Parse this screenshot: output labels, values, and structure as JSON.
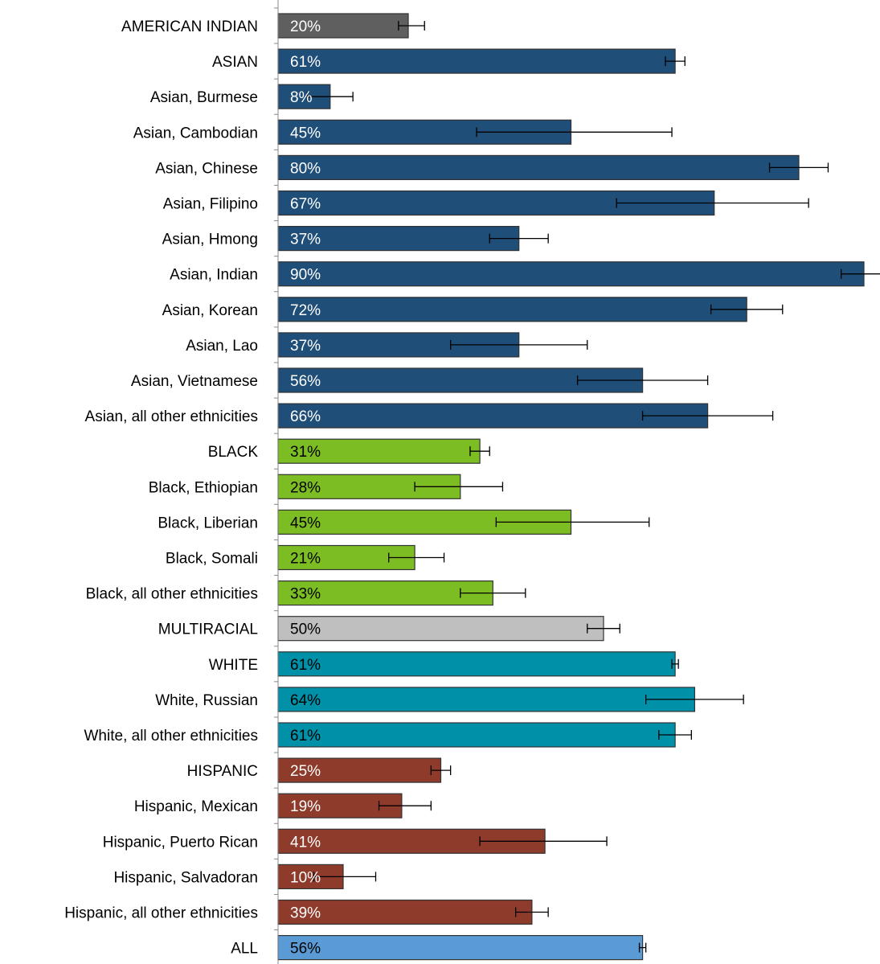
{
  "chart_data": {
    "type": "bar",
    "orientation": "horizontal",
    "title": "",
    "xlabel": "",
    "ylabel": "",
    "xlim": [
      0,
      100
    ],
    "grid": false,
    "legend": "none",
    "colors": {
      "american_indian": "#5f5f5f",
      "asian": "#1f4e79",
      "black": "#7bbd22",
      "multiracial": "#bfbfbf",
      "white": "#0090a8",
      "hispanic": "#8e3b2b",
      "all": "#5b9bd5"
    },
    "categories": [
      "AMERICAN INDIAN",
      "ASIAN",
      "Asian, Burmese",
      "Asian, Cambodian",
      "Asian, Chinese",
      "Asian, Filipino",
      "Asian, Hmong",
      "Asian, Indian",
      "Asian, Korean",
      "Asian, Lao",
      "Asian, Vietnamese",
      "Asian, all other ethnicities",
      "BLACK",
      "Black, Ethiopian",
      "Black, Liberian",
      "Black, Somali",
      "Black, all other ethnicities",
      "MULTIRACIAL",
      "WHITE",
      "White, Russian",
      "White, all other ethnicities",
      "HISPANIC",
      "Hispanic, Mexican",
      "Hispanic, Puerto Rican",
      "Hispanic, Salvadoran",
      "Hispanic, all other ethnicities",
      "ALL"
    ],
    "values": [
      20,
      61,
      8,
      45,
      80,
      67,
      37,
      90,
      72,
      37,
      56,
      66,
      31,
      28,
      45,
      21,
      33,
      50,
      61,
      64,
      61,
      25,
      19,
      41,
      10,
      39,
      56
    ],
    "value_labels": [
      "20%",
      "61%",
      "8%",
      "45%",
      "80%",
      "67%",
      "37%",
      "90%",
      "72%",
      "37%",
      "56%",
      "66%",
      "31%",
      "28%",
      "45%",
      "21%",
      "33%",
      "50%",
      "61%",
      "64%",
      "61%",
      "25%",
      "19%",
      "41%",
      "10%",
      "39%",
      "56%"
    ],
    "error_low": [
      18.5,
      59.5,
      4.5,
      30.5,
      75.5,
      52,
      32.5,
      86.5,
      66.5,
      26.5,
      46,
      56,
      29.5,
      21,
      33.5,
      17,
      28,
      47.5,
      60.5,
      56.5,
      58.5,
      23.5,
      15.5,
      31,
      5.5,
      36.5,
      55.5
    ],
    "error_high": [
      22.5,
      62.5,
      11.5,
      60.5,
      84.5,
      81.5,
      41.5,
      94.5,
      77.5,
      47.5,
      66,
      76,
      32.5,
      34.5,
      57,
      25.5,
      38,
      52.5,
      61.5,
      71.5,
      63.5,
      26.5,
      23.5,
      50.5,
      15,
      41.5,
      56.5
    ],
    "bar_colors": [
      "american_indian",
      "asian",
      "asian",
      "asian",
      "asian",
      "asian",
      "asian",
      "asian",
      "asian",
      "asian",
      "asian",
      "asian",
      "black",
      "black",
      "black",
      "black",
      "black",
      "multiracial",
      "white",
      "white",
      "white",
      "hispanic",
      "hispanic",
      "hispanic",
      "hispanic",
      "hispanic",
      "all"
    ],
    "label_colors": [
      "#ffffff",
      "#ffffff",
      "#ffffff",
      "#ffffff",
      "#ffffff",
      "#ffffff",
      "#ffffff",
      "#ffffff",
      "#ffffff",
      "#ffffff",
      "#ffffff",
      "#ffffff",
      "#000000",
      "#000000",
      "#000000",
      "#000000",
      "#000000",
      "#000000",
      "#000000",
      "#000000",
      "#000000",
      "#ffffff",
      "#ffffff",
      "#ffffff",
      "#ffffff",
      "#ffffff",
      "#000000"
    ]
  }
}
